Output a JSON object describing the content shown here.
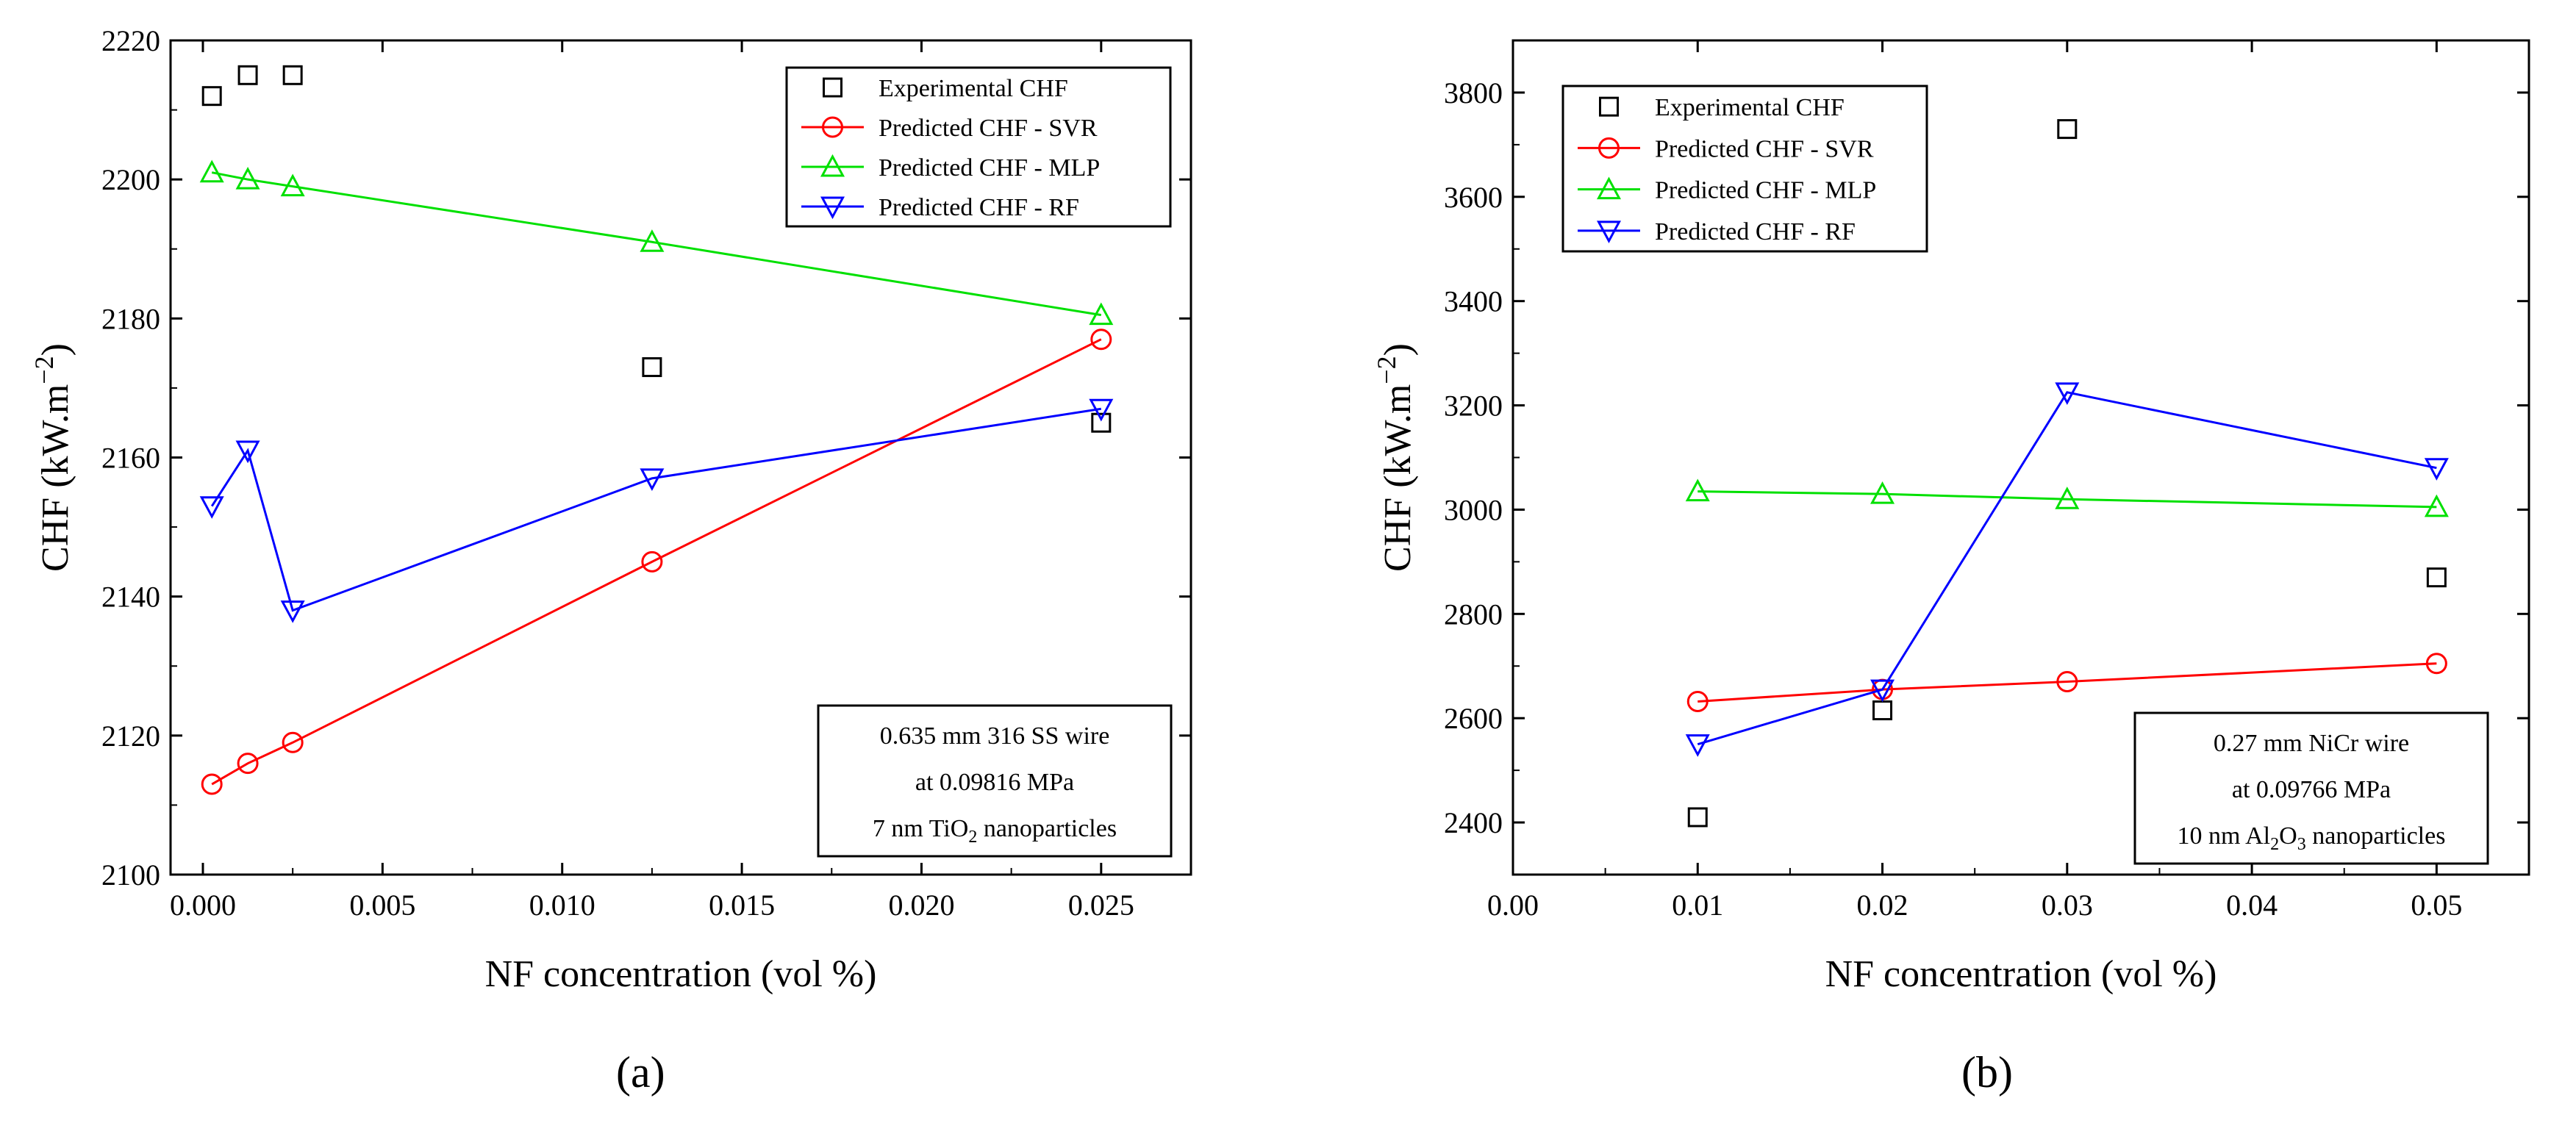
{
  "chart_data": [
    {
      "id": "a",
      "type": "line",
      "caption": "(a)",
      "xlabel": "NF concentration (vol %)",
      "ylabel": "CHF (kW.m",
      "ylabel_sup": "−2",
      "ylabel_end": ")",
      "xlim": [
        -0.0009,
        0.0275
      ],
      "ylim": [
        2100,
        2220
      ],
      "xticks": [
        0.0,
        0.005,
        0.01,
        0.015,
        0.02,
        0.025
      ],
      "xtick_labels": [
        "0.000",
        "0.005",
        "0.010",
        "0.015",
        "0.020",
        "0.025"
      ],
      "yticks": [
        2100,
        2120,
        2140,
        2160,
        2180,
        2200,
        2220
      ],
      "ytick_labels": [
        "2100",
        "2120",
        "2140",
        "2160",
        "2180",
        "2200",
        "2220"
      ],
      "legend_position": "top-right",
      "annotation_position": "bottom-right",
      "annotation": [
        "0.635 mm 316 SS wire",
        "at 0.09816 MPa",
        "7 nm TiO",
        "2",
        " nanoparticles"
      ],
      "series": [
        {
          "name": "Experimental CHF",
          "marker": "square",
          "color": "#000000",
          "line": false,
          "x": [
            0.00025,
            0.00125,
            0.0025,
            0.0125,
            0.025
          ],
          "y": [
            2212,
            2215,
            2215,
            2173,
            2165
          ]
        },
        {
          "name": "Predicted CHF - SVR",
          "marker": "circle",
          "color": "#ff0000",
          "line": true,
          "x": [
            0.00025,
            0.00125,
            0.0025,
            0.0125,
            0.025
          ],
          "y": [
            2113,
            2116,
            2119,
            2145,
            2177
          ]
        },
        {
          "name": "Predicted CHF - MLP",
          "marker": "triangle-up",
          "color": "#00e000",
          "line": true,
          "x": [
            0.00025,
            0.00125,
            0.0025,
            0.0125,
            0.025
          ],
          "y": [
            2201,
            2200,
            2199,
            2191,
            2180.5
          ]
        },
        {
          "name": "Predicted CHF - RF",
          "marker": "triangle-down",
          "color": "#0000ff",
          "line": true,
          "x": [
            0.00025,
            0.00125,
            0.0025,
            0.0125,
            0.025
          ],
          "y": [
            2153,
            2161,
            2138,
            2157,
            2167
          ]
        }
      ]
    },
    {
      "id": "b",
      "type": "line",
      "caption": "(b)",
      "xlabel": "NF concentration (vol %)",
      "ylabel": "CHF (kW.m",
      "ylabel_sup": "−2",
      "ylabel_end": ")",
      "xlim": [
        0.0,
        0.055
      ],
      "ylim": [
        2300,
        3900
      ],
      "xticks": [
        0.0,
        0.01,
        0.02,
        0.03,
        0.04,
        0.05
      ],
      "xtick_labels": [
        "0.00",
        "0.01",
        "0.02",
        "0.03",
        "0.04",
        "0.05"
      ],
      "yticks": [
        2400,
        2600,
        2800,
        3000,
        3200,
        3400,
        3600,
        3800
      ],
      "ytick_labels": [
        "2400",
        "2600",
        "2800",
        "3000",
        "3200",
        "3400",
        "3600",
        "3800"
      ],
      "legend_position": "top-left",
      "annotation_position": "bottom-right",
      "annotation": [
        "0.27 mm NiCr wire",
        "at 0.09766 MPa",
        "10 nm Al",
        "2",
        "O",
        "3",
        " nanoparticles"
      ],
      "series": [
        {
          "name": "Experimental CHF",
          "marker": "square",
          "color": "#000000",
          "line": false,
          "x": [
            0.01,
            0.02,
            0.03,
            0.05
          ],
          "y": [
            2410,
            2615,
            3730,
            2870
          ]
        },
        {
          "name": "Predicted CHF - SVR",
          "marker": "circle",
          "color": "#ff0000",
          "line": true,
          "x": [
            0.01,
            0.02,
            0.03,
            0.05
          ],
          "y": [
            2632,
            2655,
            2670,
            2705
          ]
        },
        {
          "name": "Predicted CHF - MLP",
          "marker": "triangle-up",
          "color": "#00e000",
          "line": true,
          "x": [
            0.01,
            0.02,
            0.03,
            0.05
          ],
          "y": [
            3035,
            3030,
            3020,
            3005
          ]
        },
        {
          "name": "Predicted CHF - RF",
          "marker": "triangle-down",
          "color": "#0000ff",
          "line": true,
          "x": [
            0.01,
            0.02,
            0.03,
            0.05
          ],
          "y": [
            2550,
            2655,
            3225,
            3080
          ]
        }
      ]
    }
  ]
}
